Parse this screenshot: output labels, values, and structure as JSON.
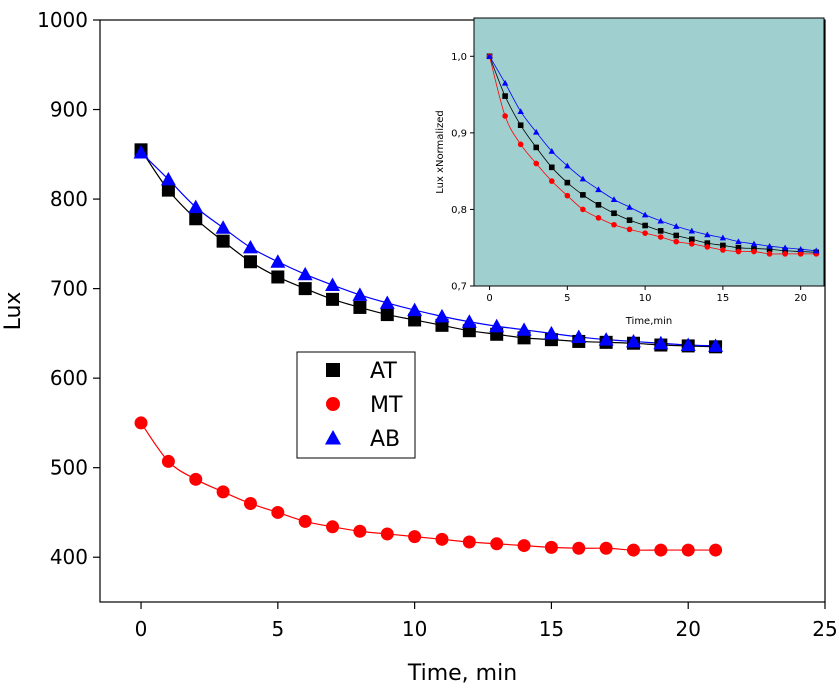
{
  "chart_data": [
    {
      "type": "scatter",
      "panel": "main",
      "xlabel": "Time, min",
      "ylabel": "Lux",
      "xlim": [
        -1.5,
        25
      ],
      "ylim": [
        350,
        1000
      ],
      "xticks": [
        0,
        5,
        10,
        15,
        20,
        25
      ],
      "yticks": [
        400,
        500,
        600,
        700,
        800,
        900,
        1000
      ],
      "xtick_labels": [
        "0",
        "5",
        "10",
        "15",
        "20",
        "25"
      ],
      "ytick_labels": [
        "400",
        "500",
        "600",
        "700",
        "800",
        "900",
        "1000"
      ],
      "legend_position": "center-left",
      "series": [
        {
          "name": "AT",
          "marker": "square",
          "color": "#000000",
          "x": [
            0,
            1,
            2,
            3,
            4,
            5,
            6,
            7,
            8,
            9,
            10,
            11,
            12,
            13,
            14,
            15,
            16,
            17,
            18,
            19,
            20,
            21
          ],
          "y": [
            855,
            810,
            778,
            753,
            730,
            713,
            700,
            688,
            679,
            671,
            665,
            659,
            653,
            649,
            645,
            643,
            641,
            640,
            639,
            637,
            636,
            635
          ]
        },
        {
          "name": "MT",
          "marker": "circle",
          "color": "#ff0000",
          "x": [
            0,
            1,
            2,
            3,
            4,
            5,
            6,
            7,
            8,
            9,
            10,
            11,
            12,
            13,
            14,
            15,
            16,
            17,
            18,
            19,
            20,
            21
          ],
          "y": [
            550,
            507,
            487,
            473,
            460,
            450,
            440,
            434,
            429,
            426,
            423,
            420,
            417,
            415,
            413,
            411,
            410,
            410,
            408,
            408,
            408,
            408
          ]
        },
        {
          "name": "AB",
          "marker": "triangle",
          "color": "#0000ff",
          "x": [
            0,
            1,
            2,
            3,
            4,
            5,
            6,
            7,
            8,
            9,
            10,
            11,
            12,
            13,
            14,
            15,
            16,
            17,
            18,
            19,
            20,
            21
          ],
          "y": [
            852,
            822,
            791,
            768,
            746,
            730,
            716,
            704,
            693,
            684,
            676,
            669,
            663,
            658,
            654,
            650,
            646,
            643,
            641,
            639,
            637,
            636
          ]
        }
      ]
    },
    {
      "type": "scatter",
      "panel": "inset",
      "xlabel": "Time,min",
      "ylabel": "Lux xNormalized",
      "xlim": [
        -1,
        21.5
      ],
      "ylim": [
        0.7,
        1.05
      ],
      "xticks": [
        0,
        5,
        10,
        15,
        20
      ],
      "yticks": [
        0.7,
        0.8,
        0.9,
        1.0
      ],
      "xtick_labels": [
        "0",
        "5",
        "10",
        "15",
        "20"
      ],
      "ytick_labels": [
        "0,7",
        "0,8",
        "0,9",
        "1,0"
      ],
      "background": "#9fcfcf",
      "series": [
        {
          "name": "AT",
          "marker": "square",
          "color": "#000000",
          "x": [
            0,
            1,
            2,
            3,
            4,
            5,
            6,
            7,
            8,
            9,
            10,
            11,
            12,
            13,
            14,
            15,
            16,
            17,
            18,
            19,
            20,
            21
          ],
          "y": [
            1.0,
            0.948,
            0.91,
            0.881,
            0.855,
            0.835,
            0.819,
            0.806,
            0.795,
            0.786,
            0.779,
            0.772,
            0.766,
            0.761,
            0.756,
            0.753,
            0.75,
            0.749,
            0.748,
            0.746,
            0.745,
            0.744
          ]
        },
        {
          "name": "MT",
          "marker": "circle",
          "color": "#ff0000",
          "x": [
            0,
            1,
            2,
            3,
            4,
            5,
            6,
            7,
            8,
            9,
            10,
            11,
            12,
            13,
            14,
            15,
            16,
            17,
            18,
            19,
            20,
            21
          ],
          "y": [
            1.0,
            0.922,
            0.885,
            0.86,
            0.837,
            0.818,
            0.8,
            0.789,
            0.78,
            0.774,
            0.769,
            0.764,
            0.758,
            0.755,
            0.751,
            0.747,
            0.745,
            0.745,
            0.742,
            0.742,
            0.742,
            0.742
          ]
        },
        {
          "name": "AB",
          "marker": "triangle",
          "color": "#0000ff",
          "x": [
            0,
            1,
            2,
            3,
            4,
            5,
            6,
            7,
            8,
            9,
            10,
            11,
            12,
            13,
            14,
            15,
            16,
            17,
            18,
            19,
            20,
            21
          ],
          "y": [
            1.0,
            0.965,
            0.928,
            0.901,
            0.876,
            0.857,
            0.84,
            0.826,
            0.813,
            0.803,
            0.793,
            0.785,
            0.778,
            0.772,
            0.767,
            0.763,
            0.758,
            0.755,
            0.752,
            0.75,
            0.748,
            0.746
          ]
        }
      ]
    }
  ]
}
